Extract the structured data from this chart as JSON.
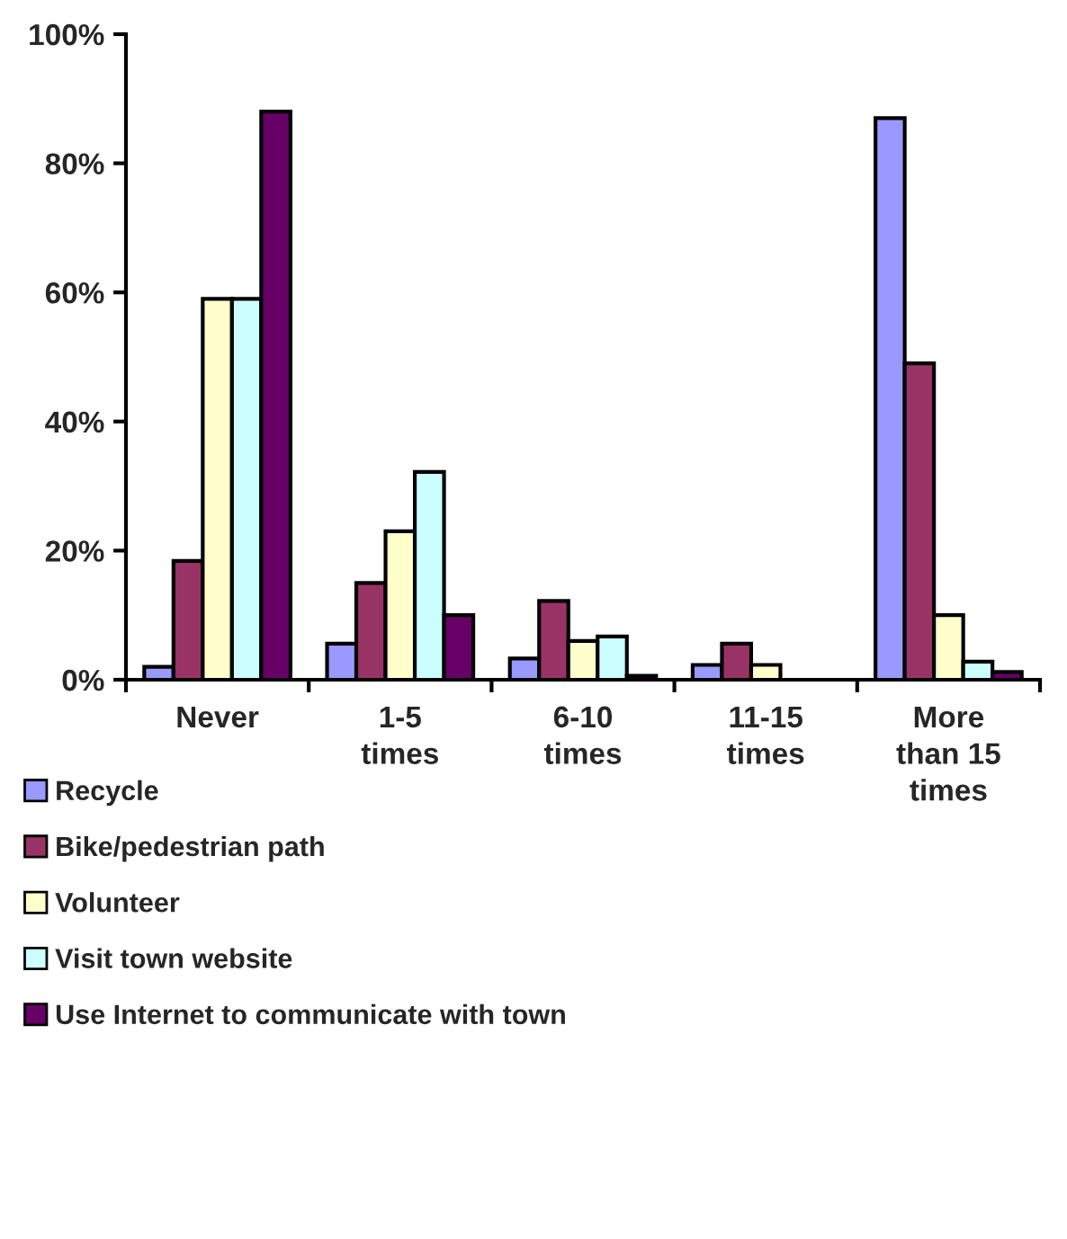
{
  "chart_data": {
    "type": "bar",
    "categories": [
      "Never",
      "1-5\ntimes",
      "6-10\ntimes",
      "11-15\ntimes",
      "More\nthan 15\ntimes"
    ],
    "series": [
      {
        "name": "Recycle",
        "color": "#9999ff",
        "values": [
          2,
          5.6,
          3.3,
          2.3,
          87
        ]
      },
      {
        "name": "Bike/pedestrian path",
        "color": "#993366",
        "values": [
          18.4,
          15,
          12.2,
          5.6,
          49
        ]
      },
      {
        "name": "Volunteer",
        "color": "#ffffcc",
        "values": [
          59,
          23,
          6,
          2.3,
          10
        ]
      },
      {
        "name": "Visit town website",
        "color": "#ccffff",
        "values": [
          59,
          32.2,
          6.7,
          null,
          2.8
        ]
      },
      {
        "name": "Use Internet to communicate with town",
        "color": "#660066",
        "values": [
          88,
          10,
          0.6,
          null,
          1.2
        ]
      }
    ],
    "ylim": [
      0,
      100
    ],
    "yticks": [
      {
        "value": 0,
        "label": "0%"
      },
      {
        "value": 20,
        "label": "20%"
      },
      {
        "value": 40,
        "label": "40%"
      },
      {
        "value": 60,
        "label": "60%"
      },
      {
        "value": 80,
        "label": "80%"
      },
      {
        "value": 100,
        "label": "100%"
      }
    ],
    "grid": false,
    "legend": "bottom"
  }
}
